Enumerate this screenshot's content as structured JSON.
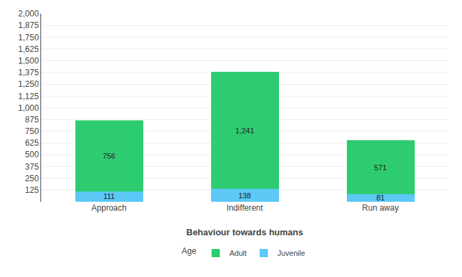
{
  "chart_data": {
    "type": "bar",
    "stacked": true,
    "data_labels": true,
    "grid": true,
    "legend": "bottom",
    "xlabel": "Behaviour towards humans",
    "legend_title": "Age",
    "categories": [
      "Approach",
      "Indifferent",
      "Run away"
    ],
    "series": [
      {
        "name": "Juvenile",
        "color": "#5bc8f5",
        "values": [
          111,
          138,
          81
        ]
      },
      {
        "name": "Adult",
        "color": "#2ecc71",
        "values": [
          756,
          1241,
          571
        ],
        "value_labels": [
          "756",
          "1,241",
          "571"
        ]
      }
    ],
    "ylim": [
      0,
      2000
    ],
    "yticks": [
      125,
      250,
      375,
      500,
      625,
      750,
      875,
      {
        "value": 1000,
        "label": "1,000"
      },
      {
        "value": 1125,
        "label": "1,125"
      },
      {
        "value": 1250,
        "label": "1,250"
      },
      {
        "value": 1375,
        "label": "1,375"
      },
      {
        "value": 1500,
        "label": "1,500"
      },
      {
        "value": 1625,
        "label": "1,625"
      },
      {
        "value": 1750,
        "label": "1,750"
      },
      {
        "value": 1875,
        "label": "1,875"
      },
      {
        "value": 2000,
        "label": "2,000"
      }
    ]
  }
}
